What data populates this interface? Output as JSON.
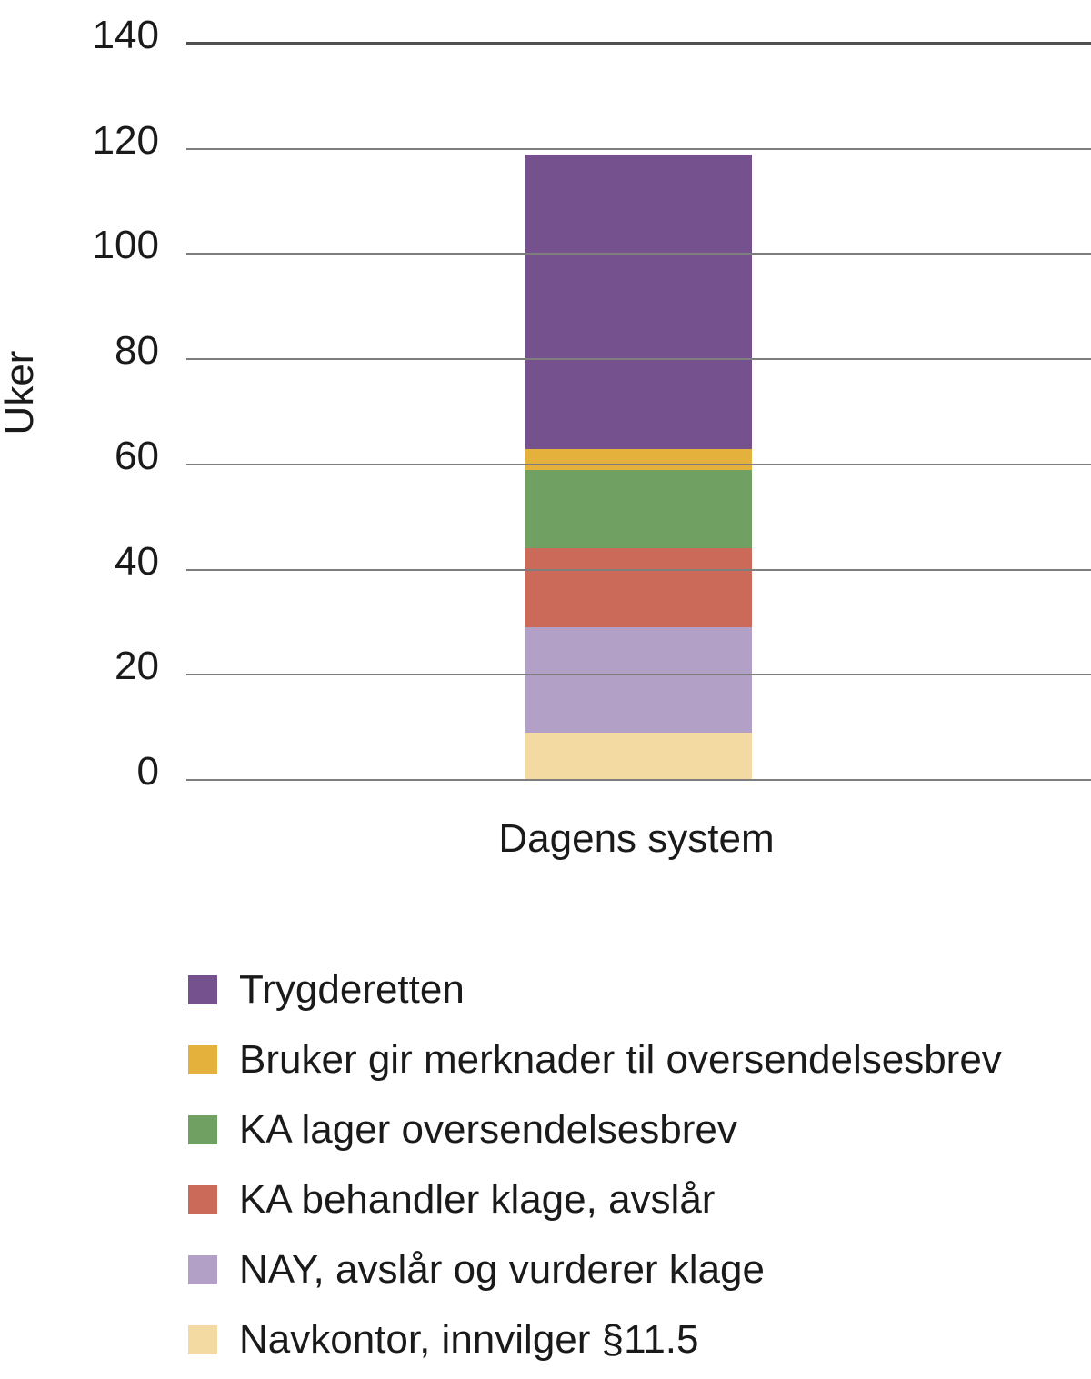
{
  "chart_data": {
    "type": "bar",
    "stacked": true,
    "categories": [
      "Dagens system"
    ],
    "series": [
      {
        "name": "Navkontor, innvilger §11.5",
        "color": "#F2DAA2",
        "values": [
          9
        ]
      },
      {
        "name": "NAY, avslår og vurderer klage",
        "color": "#B2A0C7",
        "values": [
          20
        ]
      },
      {
        "name": "KA behandler klage, avslår",
        "color": "#CB6A58",
        "values": [
          15
        ]
      },
      {
        "name": "KA lager oversendelsesbrev",
        "color": "#70A163",
        "values": [
          15
        ]
      },
      {
        "name": "Bruker gir merknader til oversendelsesbrev",
        "color": "#E5B13D",
        "values": [
          4
        ]
      },
      {
        "name": "Trygderetten",
        "color": "#75518D",
        "values": [
          56
        ]
      }
    ],
    "stack_total": 119,
    "xlabel": "",
    "ylabel": "Uker",
    "ylim": [
      0,
      140
    ],
    "yticks": [
      0,
      20,
      40,
      60,
      80,
      100,
      120,
      140
    ],
    "grid": "horizontal",
    "legend_position": "bottom-left",
    "legend_order_top_to_bottom": [
      "Trygderetten",
      "Bruker gir merknader til oversendelsesbrev",
      "KA lager oversendelsesbrev",
      "KA behandler klage, avslår",
      "NAY, avslår og vurderer klage",
      "Navkontor, innvilger §11.5"
    ]
  },
  "style": {
    "gridline_color": "#7E7E7E",
    "top_gridline_color": "#4F4F4F",
    "text_color": "#1A1A1A",
    "background": "#FFFFFF"
  }
}
